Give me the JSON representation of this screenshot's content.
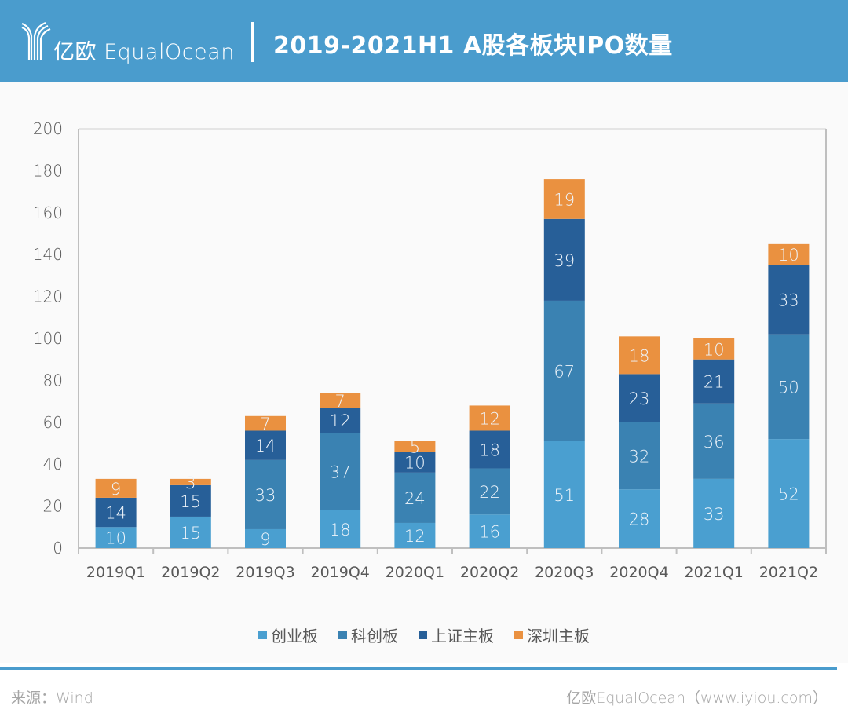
{
  "header": {
    "logo_text": "亿欧 EqualOcean",
    "title": "2019-2021H1 A股各板块IPO数量",
    "bg_color": "#4a9ccd"
  },
  "chart_data": {
    "type": "bar",
    "stacked": true,
    "title": "2019-2021H1 A股各板块IPO数量",
    "xlabel": "",
    "ylabel": "",
    "ylim": [
      0,
      200
    ],
    "yticks": [
      "0",
      "20",
      "40",
      "60",
      "80",
      "100",
      "120",
      "140",
      "160",
      "180",
      "200"
    ],
    "grid": false,
    "legend_position": "bottom",
    "categories": [
      "2019Q1",
      "2019Q2",
      "2019Q3",
      "2019Q4",
      "2020Q1",
      "2020Q2",
      "2020Q3",
      "2020Q4",
      "2021Q1",
      "2021Q2"
    ],
    "series": [
      {
        "name": "创业板",
        "color": "#4a9fd0",
        "values": [
          10,
          15,
          9,
          18,
          12,
          16,
          51,
          28,
          33,
          52
        ]
      },
      {
        "name": "科创板",
        "color": "#3a82b2",
        "values": [
          0,
          0,
          33,
          37,
          24,
          22,
          67,
          32,
          36,
          50
        ]
      },
      {
        "name": "上证主板",
        "color": "#275f98",
        "values": [
          14,
          15,
          14,
          12,
          10,
          18,
          39,
          23,
          21,
          33
        ]
      },
      {
        "name": "深圳主板",
        "color": "#ea9140",
        "values": [
          9,
          3,
          7,
          7,
          5,
          12,
          19,
          18,
          10,
          10
        ]
      }
    ]
  },
  "footer": {
    "source": "来源：Wind",
    "credit": "亿欧EqualOcean（www.iyiou.com）"
  }
}
